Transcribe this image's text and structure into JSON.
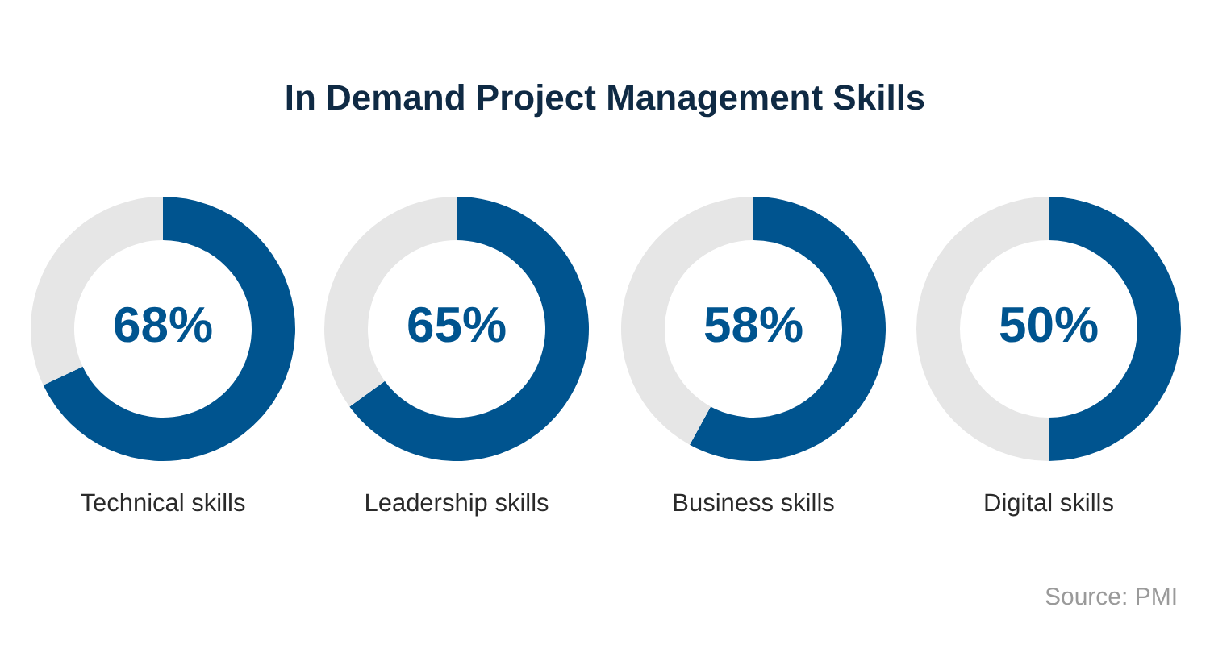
{
  "chart_data": [
    {
      "type": "donut",
      "title": "In Demand Project Management Skills",
      "categories": [
        "Technical skills",
        null
      ],
      "values": [
        68,
        32
      ],
      "colors": [
        "#00548f",
        "#e6e6e6"
      ],
      "annotations": [
        "68%"
      ]
    },
    {
      "type": "donut",
      "categories": [
        "Leadership skills",
        null
      ],
      "values": [
        65,
        35
      ],
      "colors": [
        "#00548f",
        "#e6e6e6"
      ],
      "annotations": [
        "65%"
      ]
    },
    {
      "type": "donut",
      "categories": [
        "Business skills",
        null
      ],
      "values": [
        58,
        42
      ],
      "colors": [
        "#00548f",
        "#e6e6e6"
      ],
      "annotations": [
        "58%"
      ]
    },
    {
      "type": "donut",
      "categories": [
        "Digital skills",
        null
      ],
      "values": [
        50,
        50
      ],
      "colors": [
        "#00548f",
        "#e6e6e6"
      ],
      "annotations": [
        "50%",
        "Source: PMI"
      ]
    }
  ]
}
